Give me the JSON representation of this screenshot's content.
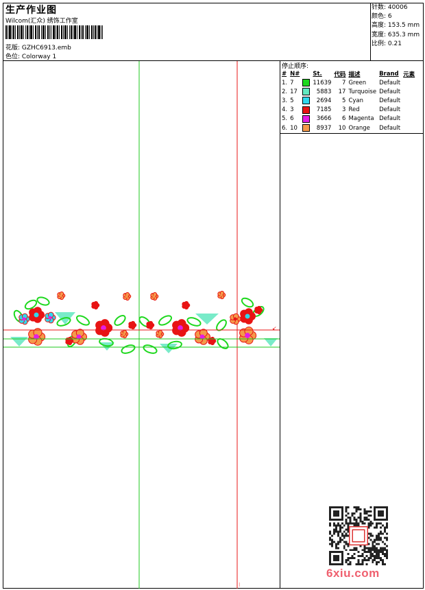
{
  "header": {
    "title": "生产作业图",
    "company": "Wilcom(汇众) 绣饰工作室",
    "design_label": "花版:",
    "design_value": "GZHC6913.emb",
    "colorway_label": "色位:",
    "colorway_value": "Colorway 1"
  },
  "stats": {
    "stitches_label": "针数:",
    "stitches": "40006",
    "colors_label": "颜色:",
    "colors": "6",
    "height_label": "高度:",
    "height": "153.5 mm",
    "width_label": "宽度:",
    "width": "635.3 mm",
    "scale_label": "比例:",
    "scale": "0.21"
  },
  "stop_sequence": {
    "title": "停止顺序:",
    "headers": [
      "#",
      "N#",
      "St.",
      "代码",
      "描述",
      "Brand",
      "元素"
    ],
    "rows": [
      {
        "idx": "1.",
        "n": "7",
        "st": "11639",
        "code": "7",
        "desc": "Green",
        "brand": "Default",
        "color": "#1ed81e"
      },
      {
        "idx": "2.",
        "n": "17",
        "st": "5883",
        "code": "17",
        "desc": "Turquoise",
        "brand": "Default",
        "color": "#62e8c0"
      },
      {
        "idx": "3.",
        "n": "5",
        "st": "2694",
        "code": "5",
        "desc": "Cyan",
        "brand": "Default",
        "color": "#30d8ec"
      },
      {
        "idx": "4.",
        "n": "3",
        "st": "7185",
        "code": "3",
        "desc": "Red",
        "brand": "Default",
        "color": "#e81414"
      },
      {
        "idx": "5.",
        "n": "6",
        "st": "3666",
        "code": "6",
        "desc": "Magenta",
        "brand": "Default",
        "color": "#e41ee4"
      },
      {
        "idx": "6.",
        "n": "10",
        "st": "8937",
        "code": "10",
        "desc": "Orange",
        "brand": "Default",
        "color": "#f49a4a"
      }
    ]
  },
  "watermark": "6xiu.com"
}
